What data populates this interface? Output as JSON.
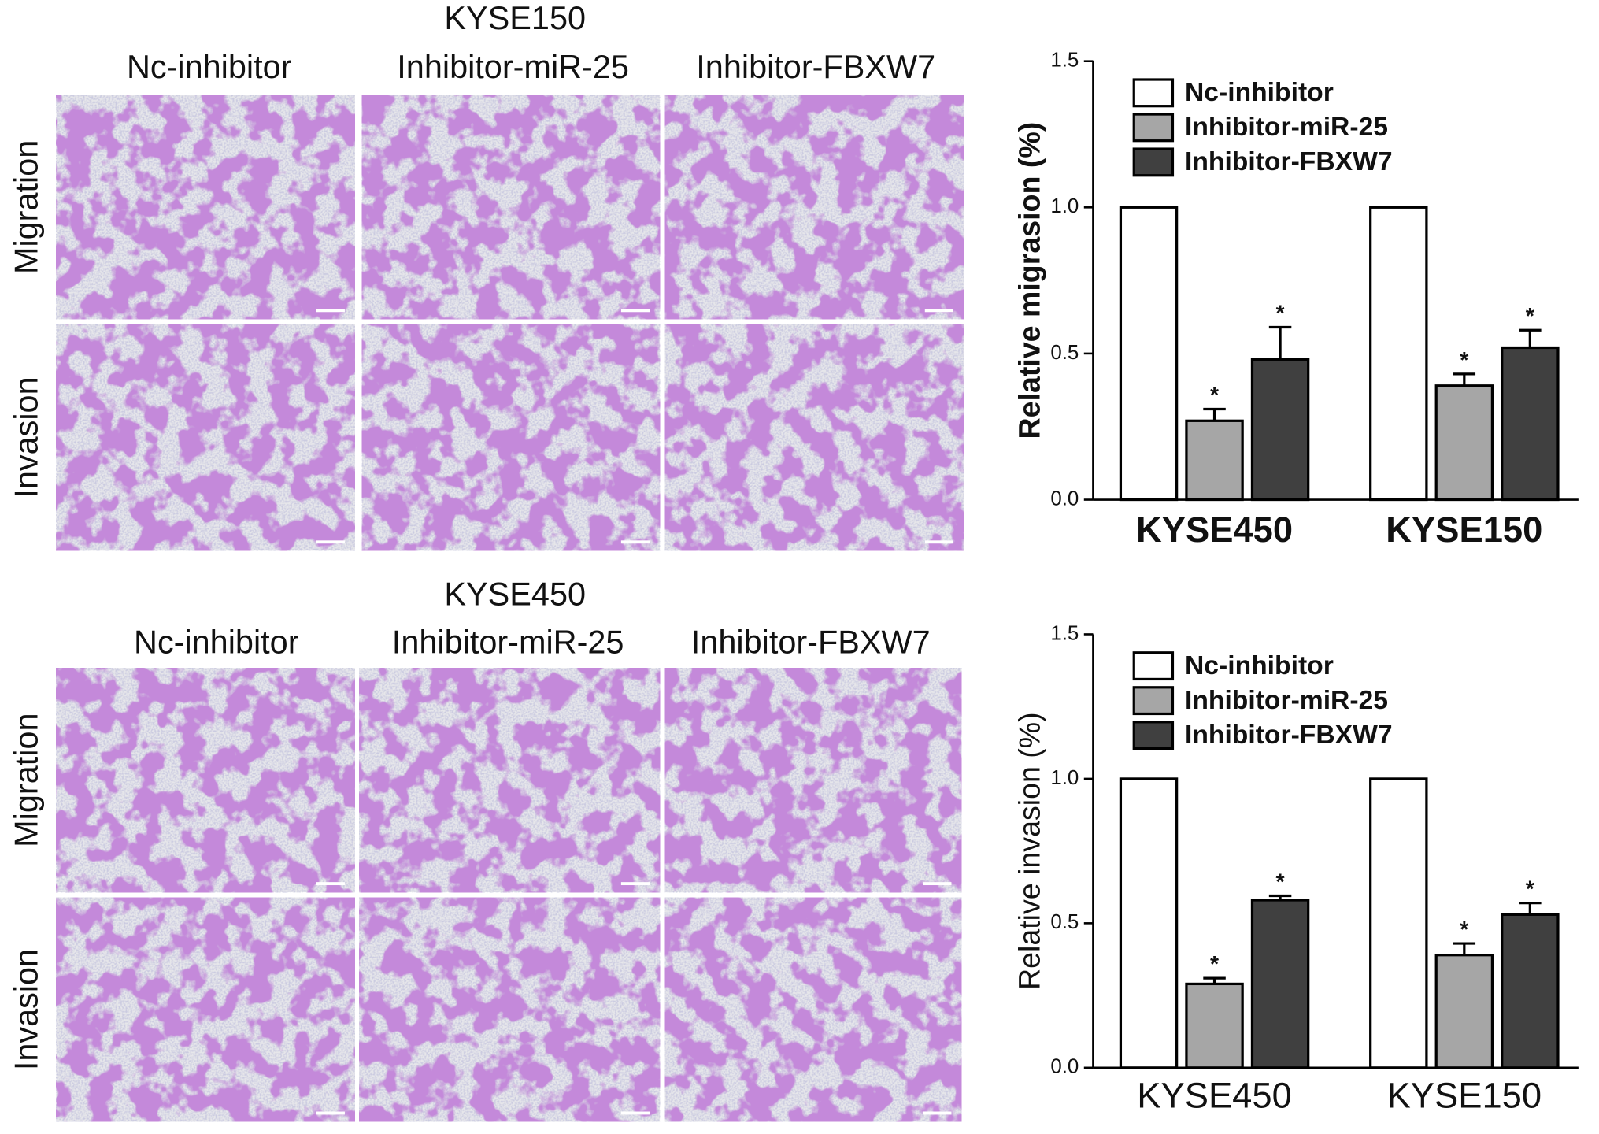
{
  "figure": {
    "top": {
      "title": "KYSE150",
      "columns": [
        "Nc-inhibitor",
        "Inhibitor-miR-25",
        "Inhibitor-FBXW7"
      ],
      "rows": [
        "Migration",
        "Invasion"
      ]
    },
    "bottom": {
      "title": "KYSE450",
      "columns": [
        "Nc-inhibitor",
        "Inhibitor-miR-25",
        "Inhibitor-FBXW7"
      ],
      "rows": [
        "Migration",
        "Invasion"
      ]
    }
  },
  "chart_data": [
    {
      "type": "bar",
      "ylabel": "Relative migrasion (%)",
      "categories": [
        "KYSE450",
        "KYSE150"
      ],
      "series": [
        {
          "name": "Nc-inhibitor",
          "color": "#ffffff",
          "values": [
            1,
            1
          ],
          "errors": [
            0,
            0
          ]
        },
        {
          "name": "Inhibitor-miR-25",
          "color": "#a6a6a6",
          "values": [
            0.27,
            0.39
          ],
          "errors": [
            0.04,
            0.04
          ],
          "significance": [
            "*",
            "*"
          ]
        },
        {
          "name": "Inhibitor-FBXW7",
          "color": "#404040",
          "values": [
            0.48,
            0.52
          ],
          "errors": [
            0.11,
            0.06
          ],
          "significance": [
            "*",
            "*"
          ]
        }
      ],
      "ylim": [
        0,
        1.5
      ],
      "yticks": [
        {
          "value": 0,
          "label": "0.0"
        },
        0.5,
        {
          "value": 1,
          "label": "1.0"
        },
        1.5
      ]
    },
    {
      "type": "bar",
      "ylabel": "Relative invasion (%)",
      "categories": [
        "KYSE450",
        "KYSE150"
      ],
      "series": [
        {
          "name": "Nc-inhibitor",
          "color": "#ffffff",
          "values": [
            1,
            1
          ],
          "errors": [
            0,
            0
          ]
        },
        {
          "name": "Inhibitor-miR-25",
          "color": "#a6a6a6",
          "values": [
            0.29,
            0.39
          ],
          "errors": [
            0.02,
            0.04
          ],
          "significance": [
            "*",
            "*"
          ]
        },
        {
          "name": "Inhibitor-FBXW7",
          "color": "#404040",
          "values": [
            0.58,
            0.53
          ],
          "errors": [
            0.015,
            0.04
          ],
          "significance": [
            "*",
            "*"
          ]
        }
      ],
      "ylim": [
        0,
        1.5
      ],
      "yticks": [
        {
          "value": 0,
          "label": "0.0"
        },
        0.5,
        {
          "value": 1,
          "label": "1.0"
        },
        1.5
      ]
    }
  ]
}
